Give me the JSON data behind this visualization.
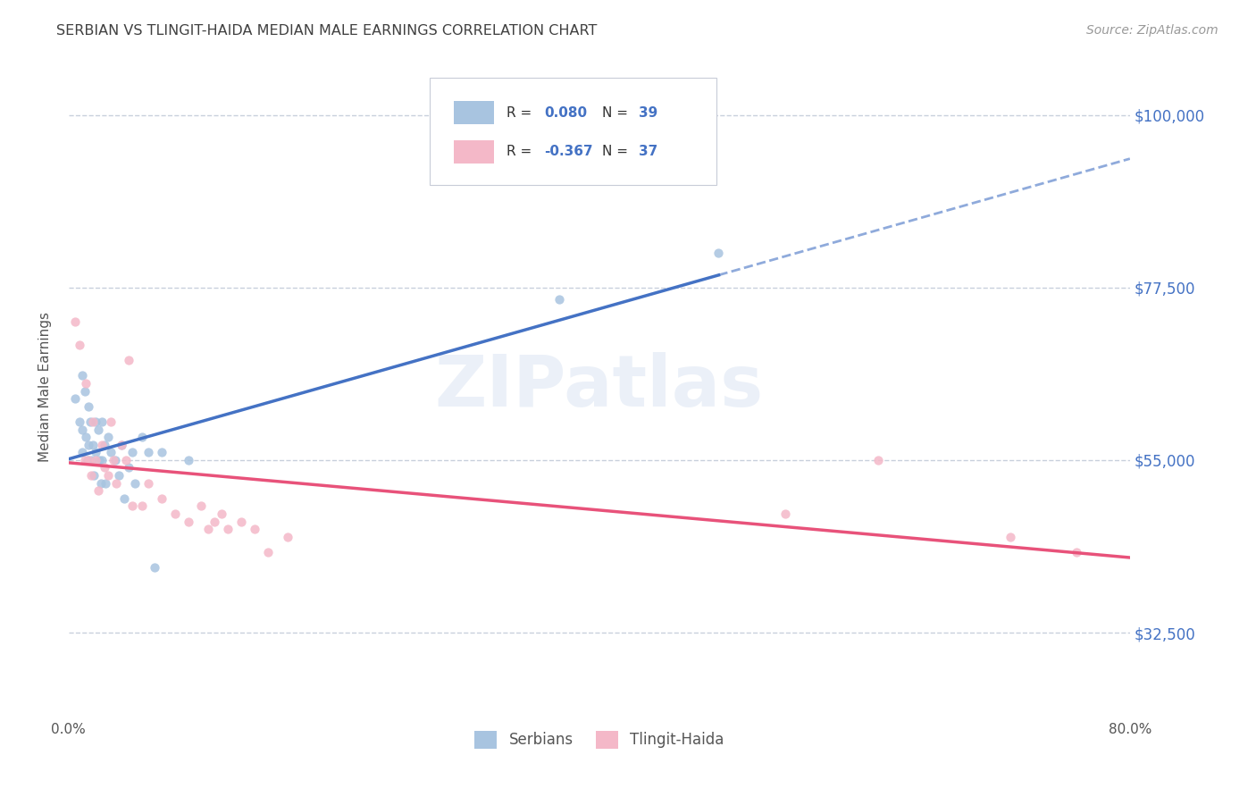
{
  "title": "SERBIAN VS TLINGIT-HAIDA MEDIAN MALE EARNINGS CORRELATION CHART",
  "source": "Source: ZipAtlas.com",
  "ylabel": "Median Male Earnings",
  "xlim": [
    0.0,
    0.8
  ],
  "ylim": [
    22000,
    107000
  ],
  "yticks": [
    32500,
    55000,
    77500,
    100000
  ],
  "ytick_labels": [
    "$32,500",
    "$55,000",
    "$77,500",
    "$100,000"
  ],
  "xticks": [
    0.0,
    0.1,
    0.2,
    0.3,
    0.4,
    0.5,
    0.6,
    0.7,
    0.8
  ],
  "xtick_labels": [
    "0.0%",
    "",
    "",
    "",
    "",
    "",
    "",
    "",
    "80.0%"
  ],
  "serbian_color": "#a8c4e0",
  "tlingit_color": "#f4b8c8",
  "serbian_line_color": "#4472c4",
  "tlingit_line_color": "#e8527a",
  "background_color": "#ffffff",
  "grid_color": "#c8d0dc",
  "title_color": "#404040",
  "right_tick_color": "#4472c4",
  "serbian_x": [
    0.005,
    0.008,
    0.01,
    0.01,
    0.01,
    0.012,
    0.013,
    0.014,
    0.015,
    0.015,
    0.016,
    0.017,
    0.018,
    0.019,
    0.02,
    0.02,
    0.022,
    0.023,
    0.024,
    0.025,
    0.025,
    0.027,
    0.028,
    0.03,
    0.032,
    0.035,
    0.038,
    0.04,
    0.042,
    0.045,
    0.048,
    0.05,
    0.055,
    0.06,
    0.065,
    0.07,
    0.09,
    0.37,
    0.49
  ],
  "serbian_y": [
    63000,
    60000,
    66000,
    59000,
    56000,
    64000,
    58000,
    55000,
    62000,
    57000,
    60000,
    55000,
    57000,
    53000,
    60000,
    56000,
    59000,
    55000,
    52000,
    60000,
    55000,
    57000,
    52000,
    58000,
    56000,
    55000,
    53000,
    57000,
    50000,
    54000,
    56000,
    52000,
    58000,
    56000,
    41000,
    56000,
    55000,
    76000,
    82000
  ],
  "tlingit_x": [
    0.005,
    0.008,
    0.012,
    0.013,
    0.015,
    0.017,
    0.018,
    0.02,
    0.022,
    0.025,
    0.027,
    0.03,
    0.032,
    0.034,
    0.036,
    0.04,
    0.043,
    0.045,
    0.048,
    0.055,
    0.06,
    0.07,
    0.08,
    0.09,
    0.1,
    0.105,
    0.11,
    0.115,
    0.12,
    0.13,
    0.14,
    0.15,
    0.165,
    0.54,
    0.61,
    0.71,
    0.76
  ],
  "tlingit_y": [
    73000,
    70000,
    55000,
    65000,
    55000,
    53000,
    60000,
    55000,
    51000,
    57000,
    54000,
    53000,
    60000,
    55000,
    52000,
    57000,
    55000,
    68000,
    49000,
    49000,
    52000,
    50000,
    48000,
    47000,
    49000,
    46000,
    47000,
    48000,
    46000,
    47000,
    46000,
    43000,
    45000,
    48000,
    55000,
    45000,
    43000
  ]
}
